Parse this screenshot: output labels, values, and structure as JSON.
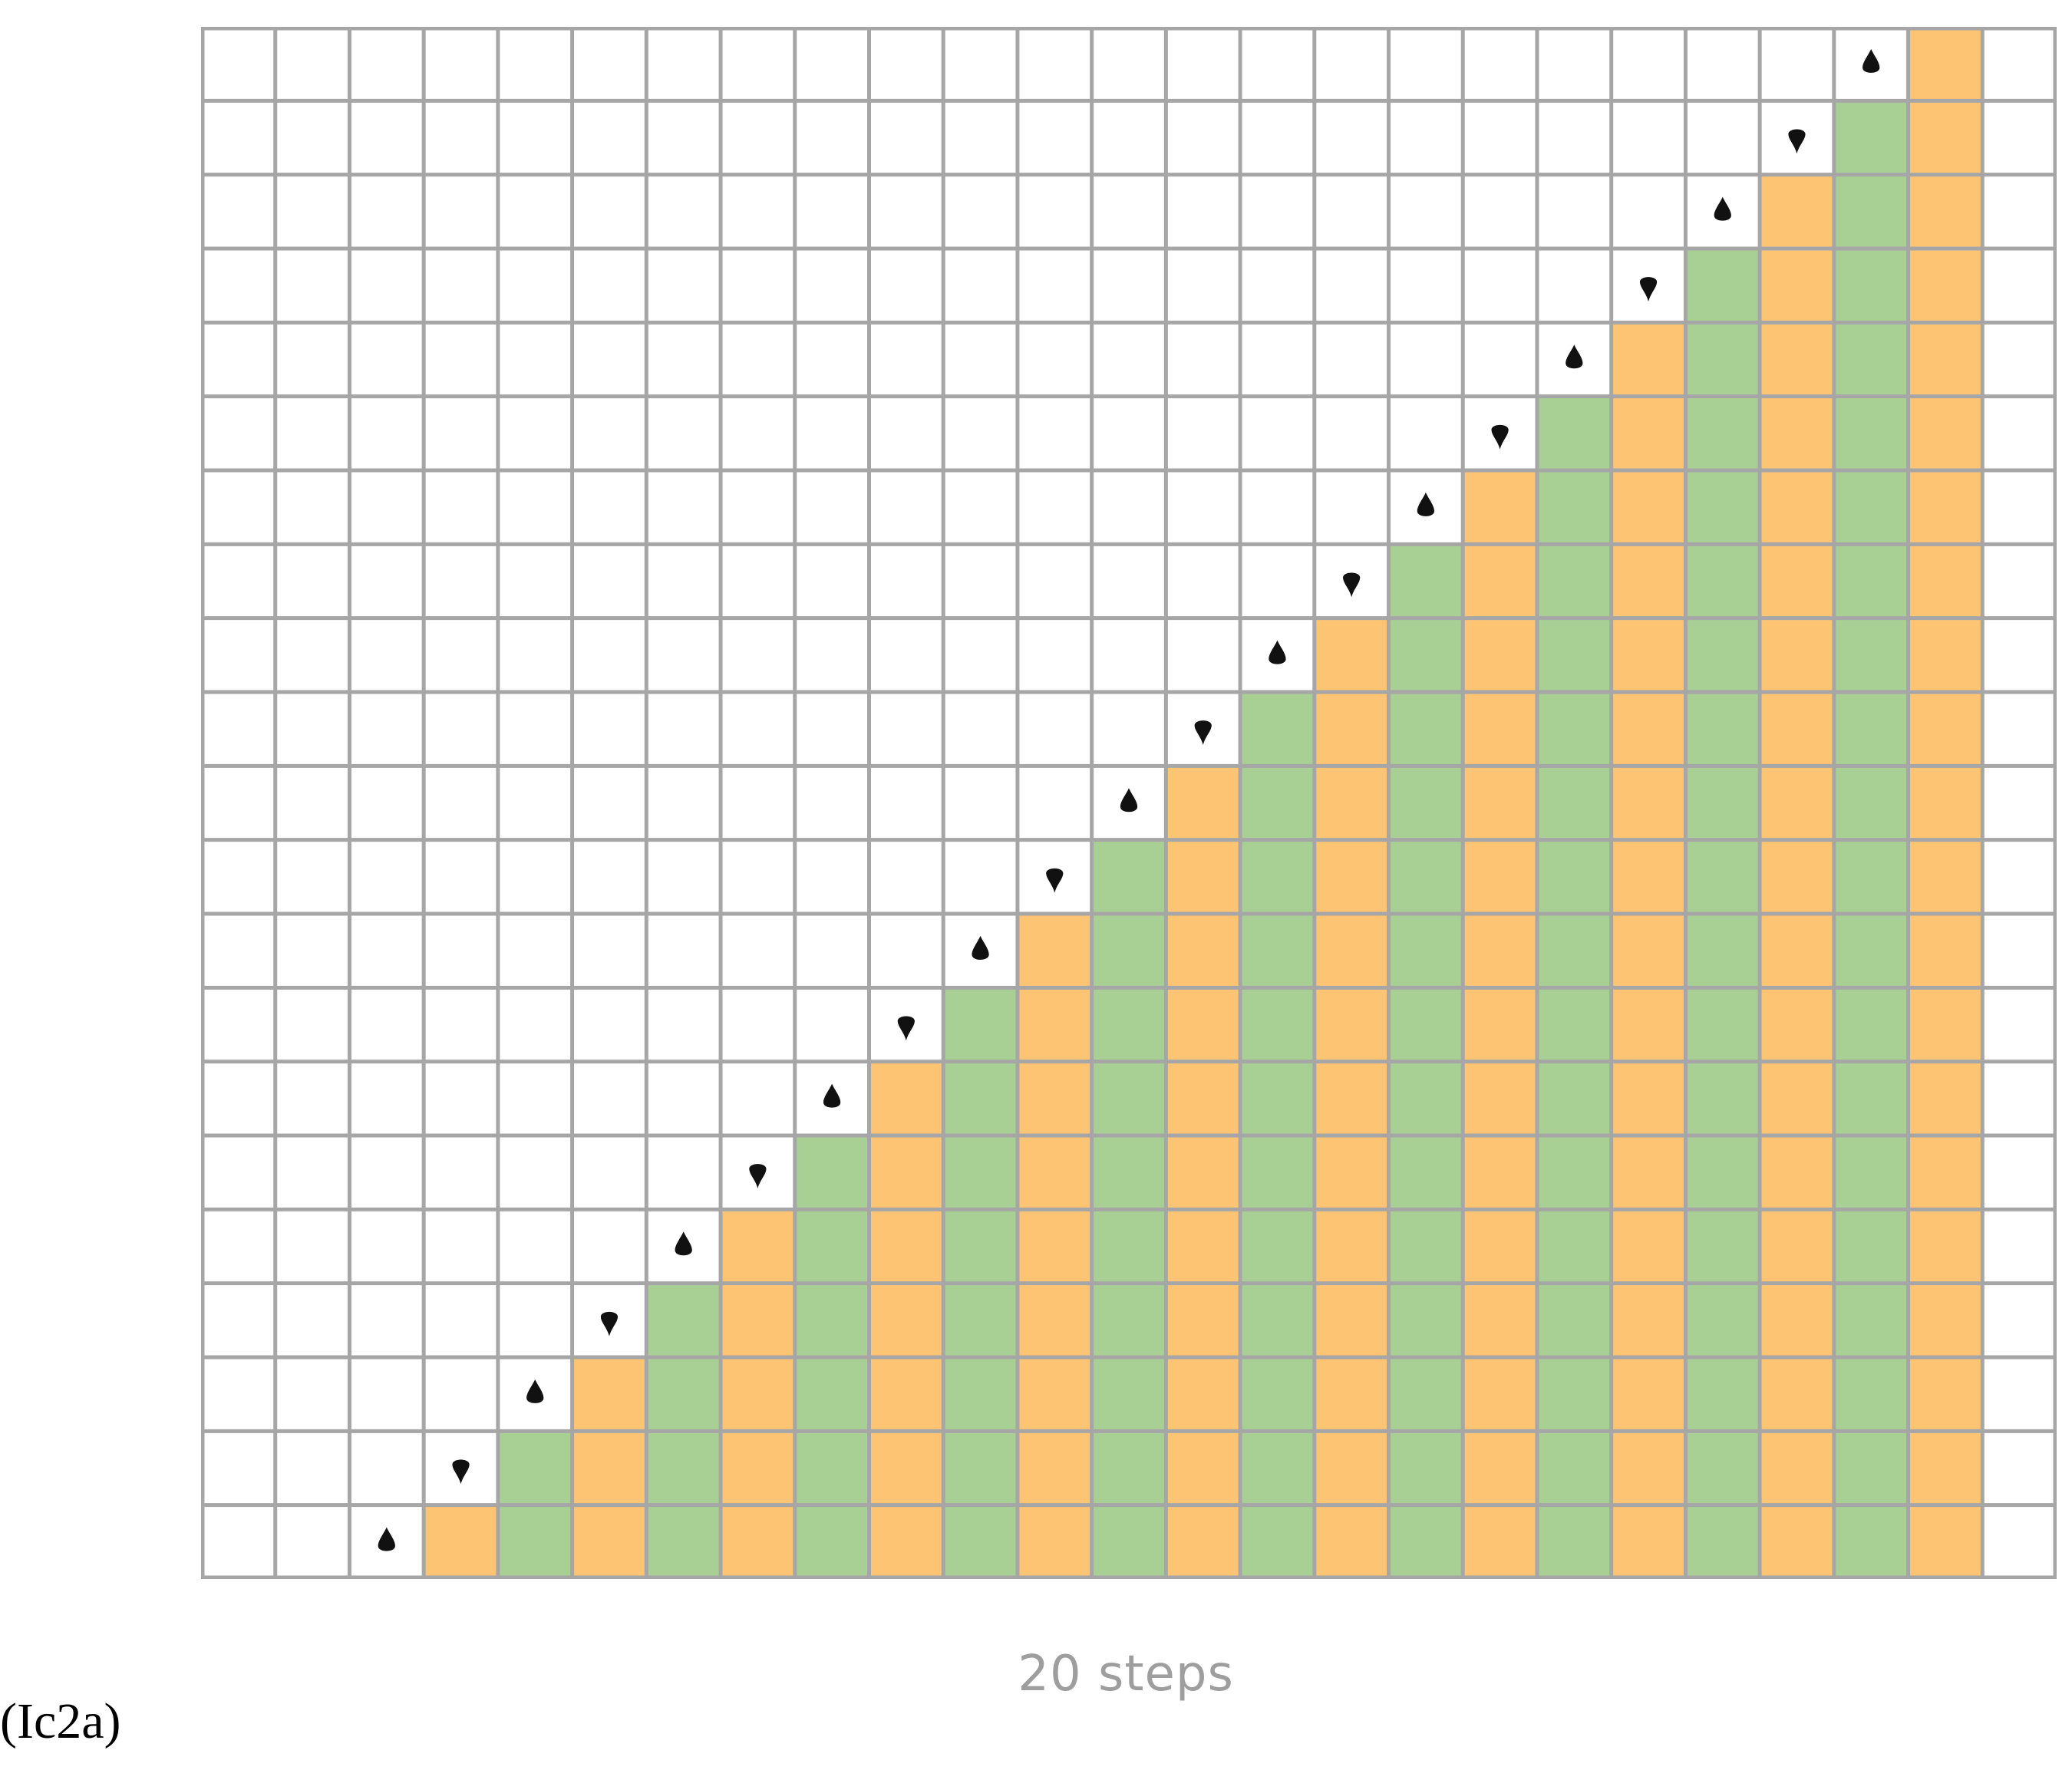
{
  "caption": "20 steps",
  "figure_label": "(Ic2a)",
  "grid": {
    "columns": 25,
    "rows": 21,
    "steps": 20,
    "first_filled_column": 4,
    "last_filled_column": 24,
    "colors": {
      "background": "#ffffff",
      "gridline": "#a6a6a6",
      "orange": "#fdc473",
      "green": "#a9d094",
      "marker": "#111111"
    },
    "column_colors": [
      "orange",
      "green"
    ],
    "marker_icons": [
      "flame-up-icon",
      "flame-down-icon"
    ]
  }
}
